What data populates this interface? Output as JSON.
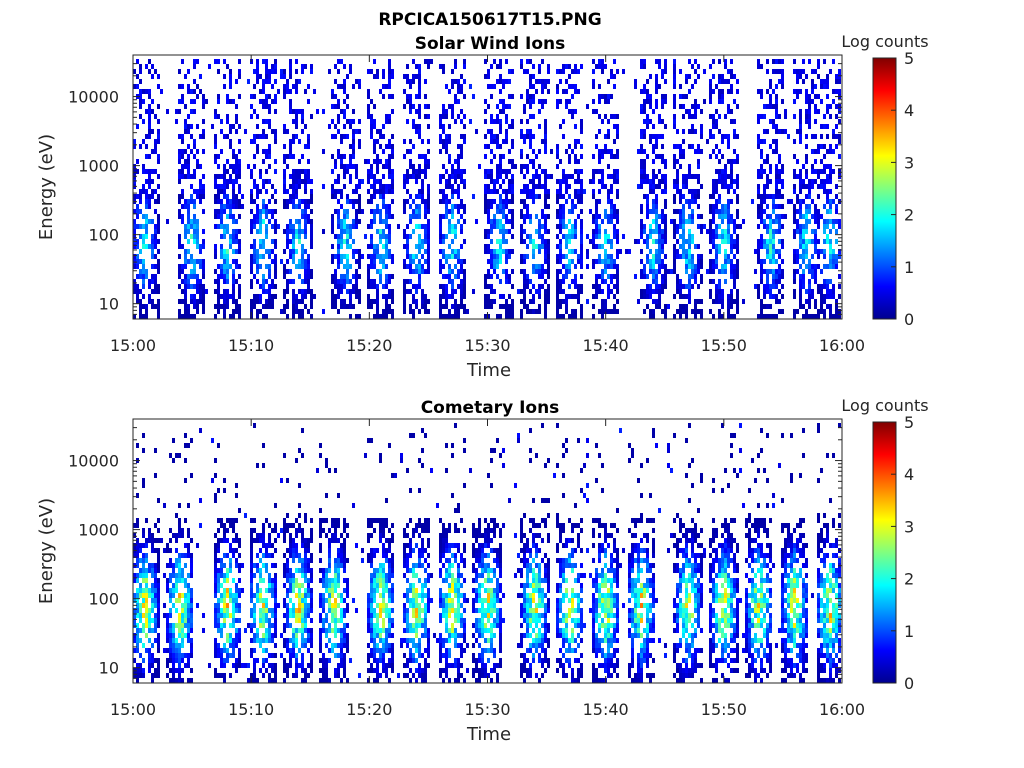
{
  "figure": {
    "title": "RPCICA150617T15.PNG"
  },
  "chart_data": [
    {
      "type": "heatmap",
      "title": "Solar Wind Ions",
      "xlabel": "Time",
      "ylabel": "Energy (eV)",
      "x_ticks": [
        "15:00",
        "15:10",
        "15:20",
        "15:30",
        "15:40",
        "15:50",
        "16:00"
      ],
      "x_range": [
        "15:00",
        "16:00"
      ],
      "y_scale": "log",
      "y_ticks": [
        "10",
        "100",
        "1000",
        "10000"
      ],
      "y_range": [
        6,
        40000
      ],
      "colorbar": {
        "label": "Log counts",
        "ticks": [
          "0",
          "1",
          "2",
          "3",
          "4",
          "5"
        ],
        "range": [
          0,
          5
        ],
        "colormap": "jet"
      },
      "description_bands": {
        "sweeps_start_minutes": [
          1,
          5,
          8,
          11,
          14,
          18,
          21,
          24,
          27,
          31,
          34,
          37,
          40,
          44,
          47,
          50,
          54,
          57,
          59
        ],
        "peak_energy_eV": 80,
        "peak_log_counts": 2.0
      }
    },
    {
      "type": "heatmap",
      "title": "Cometary Ions",
      "xlabel": "Time",
      "ylabel": "Energy (eV)",
      "x_ticks": [
        "15:00",
        "15:10",
        "15:20",
        "15:30",
        "15:40",
        "15:50",
        "16:00"
      ],
      "x_range": [
        "15:00",
        "16:00"
      ],
      "y_scale": "log",
      "y_ticks": [
        "10",
        "100",
        "1000",
        "10000"
      ],
      "y_range": [
        6,
        40000
      ],
      "colorbar": {
        "label": "Log counts",
        "ticks": [
          "0",
          "1",
          "2",
          "3",
          "4",
          "5"
        ],
        "range": [
          0,
          5
        ],
        "colormap": "jet"
      },
      "description_bands": {
        "sweeps_start_minutes": [
          1,
          4,
          8,
          11,
          14,
          17,
          21,
          24,
          27,
          30,
          34,
          37,
          40,
          43,
          47,
          50,
          53,
          56,
          59
        ],
        "peak_energy_eV": 80,
        "peak_log_counts": 3.3
      }
    }
  ]
}
